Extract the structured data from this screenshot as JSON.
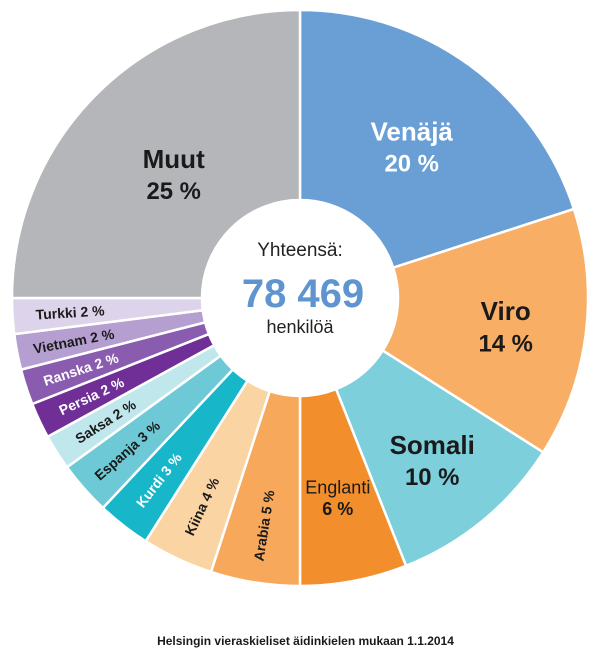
{
  "chart_data": {
    "type": "pie",
    "variant": "donut",
    "title": "",
    "caption": "Helsingin vieraskieliset äidinkielen mukaan 1.1.2014",
    "center": {
      "line1": "Yhteensä:",
      "value": "78 469",
      "line3": "henkilöä"
    },
    "slices": [
      {
        "label": "Venäjä",
        "value_label": "20 %",
        "value": 20,
        "color": "#6a9fd6"
      },
      {
        "label": "Viro",
        "value_label": "14 %",
        "value": 14,
        "color": "#f9ae66"
      },
      {
        "label": "Somali",
        "value_label": "10 %",
        "value": 10,
        "color": "#7dcfdc"
      },
      {
        "label": "Englanti",
        "value_label": "6 %",
        "value": 6,
        "color": "#f28e2b"
      },
      {
        "label": "Arabia 5 %",
        "value": 5,
        "color": "#f7a85a"
      },
      {
        "label": "Kiina 4 %",
        "value": 4,
        "color": "#fbd4a3"
      },
      {
        "label": "Kurdi 3 %",
        "value": 3,
        "color": "#17b6c9"
      },
      {
        "label": "Espanja 3 %",
        "value": 3,
        "color": "#6ec9d6"
      },
      {
        "label": "Saksa 2 %",
        "value": 2,
        "color": "#bfe7ec"
      },
      {
        "label": "Persia 2 %",
        "value": 2,
        "color": "#6f2f96"
      },
      {
        "label": "Ranska 2 %",
        "value": 2,
        "color": "#8a5cb0"
      },
      {
        "label": "Vietnam 2 %",
        "value": 2,
        "color": "#b59ed0"
      },
      {
        "label": "Turkki 2 %",
        "value": 2,
        "color": "#ddd3ea"
      },
      {
        "label": "Muut",
        "value_label": "25 %",
        "value": 25,
        "color": "#b5b6ba"
      }
    ]
  }
}
